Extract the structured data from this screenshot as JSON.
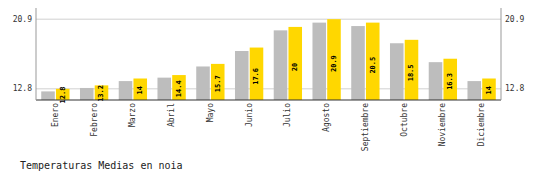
{
  "chart_data": {
    "type": "bar",
    "title": "Temperaturas Medias en noia",
    "categories": [
      "Enero",
      "Febrero",
      "Marzo",
      "Abril",
      "Mayo",
      "Junio",
      "Julio",
      "Agosto",
      "Septiembre",
      "Octubre",
      "Noviembre",
      "Diciembre"
    ],
    "series": [
      {
        "color": "#BDBDBD",
        "values": [
          12.5,
          12.9,
          13.7,
          14.1,
          15.4,
          17.2,
          19.6,
          20.5,
          20.1,
          18.1,
          15.9,
          13.7
        ]
      },
      {
        "color": "#FFD700",
        "data_labels": true,
        "values": [
          12.8,
          13.2,
          14.0,
          14.4,
          15.7,
          17.6,
          20.0,
          20.9,
          20.5,
          18.5,
          16.3,
          14.0
        ]
      }
    ],
    "ylim": [
      11.5,
      22.2
    ],
    "yticks": [
      12.8,
      20.9
    ],
    "y2lim": [
      11.5,
      22.2
    ],
    "y2ticks": [
      12.8,
      20.9
    ],
    "grid": true
  }
}
